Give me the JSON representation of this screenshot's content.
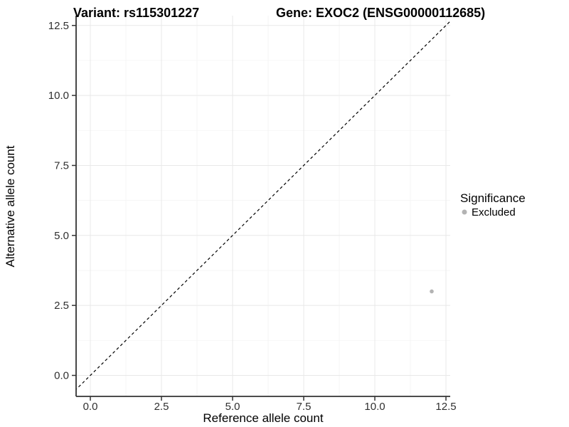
{
  "chart_data": {
    "type": "scatter",
    "title_left": "Variant: rs115301227",
    "title_right": "Gene: EXOC2 (ENSG00000112685)",
    "xlabel": "Reference allele count",
    "ylabel": "Alternative allele count",
    "xlim": [
      -0.5,
      12.65
    ],
    "ylim": [
      -0.75,
      12.85
    ],
    "x_major_ticks": [
      0,
      2.5,
      5,
      7.5,
      10,
      12.5
    ],
    "y_major_ticks": [
      0,
      2.5,
      5,
      7.5,
      10,
      12.5
    ],
    "x_tick_labels": [
      "0.0",
      "2.5",
      "5.0",
      "7.5",
      "10.0",
      "12.5"
    ],
    "y_tick_labels": [
      "0.0",
      "2.5",
      "5.0",
      "7.5",
      "10.0",
      "12.5"
    ],
    "x_minor_ticks": [
      1.25,
      3.75,
      6.25,
      8.75,
      11.25
    ],
    "y_minor_ticks": [
      1.25,
      3.75,
      6.25,
      8.75,
      11.25
    ],
    "grid": true,
    "reference_line": {
      "type": "identity",
      "style": "dashed",
      "color": "#000000"
    },
    "series": [
      {
        "name": "Excluded",
        "color": "#b3b3b3",
        "points": [
          {
            "x": 12,
            "y": 3
          }
        ]
      }
    ],
    "legend": {
      "title": "Significance",
      "position": "right",
      "entries": [
        {
          "label": "Excluded",
          "color": "#b3b3b3"
        }
      ]
    },
    "colors": {
      "background": "#ffffff",
      "axis_line": "#333333",
      "tick_mark": "#333333",
      "tick_label": "#303030",
      "grid_major": "#e8e8e8",
      "grid_minor": "#f3f3f3"
    }
  }
}
